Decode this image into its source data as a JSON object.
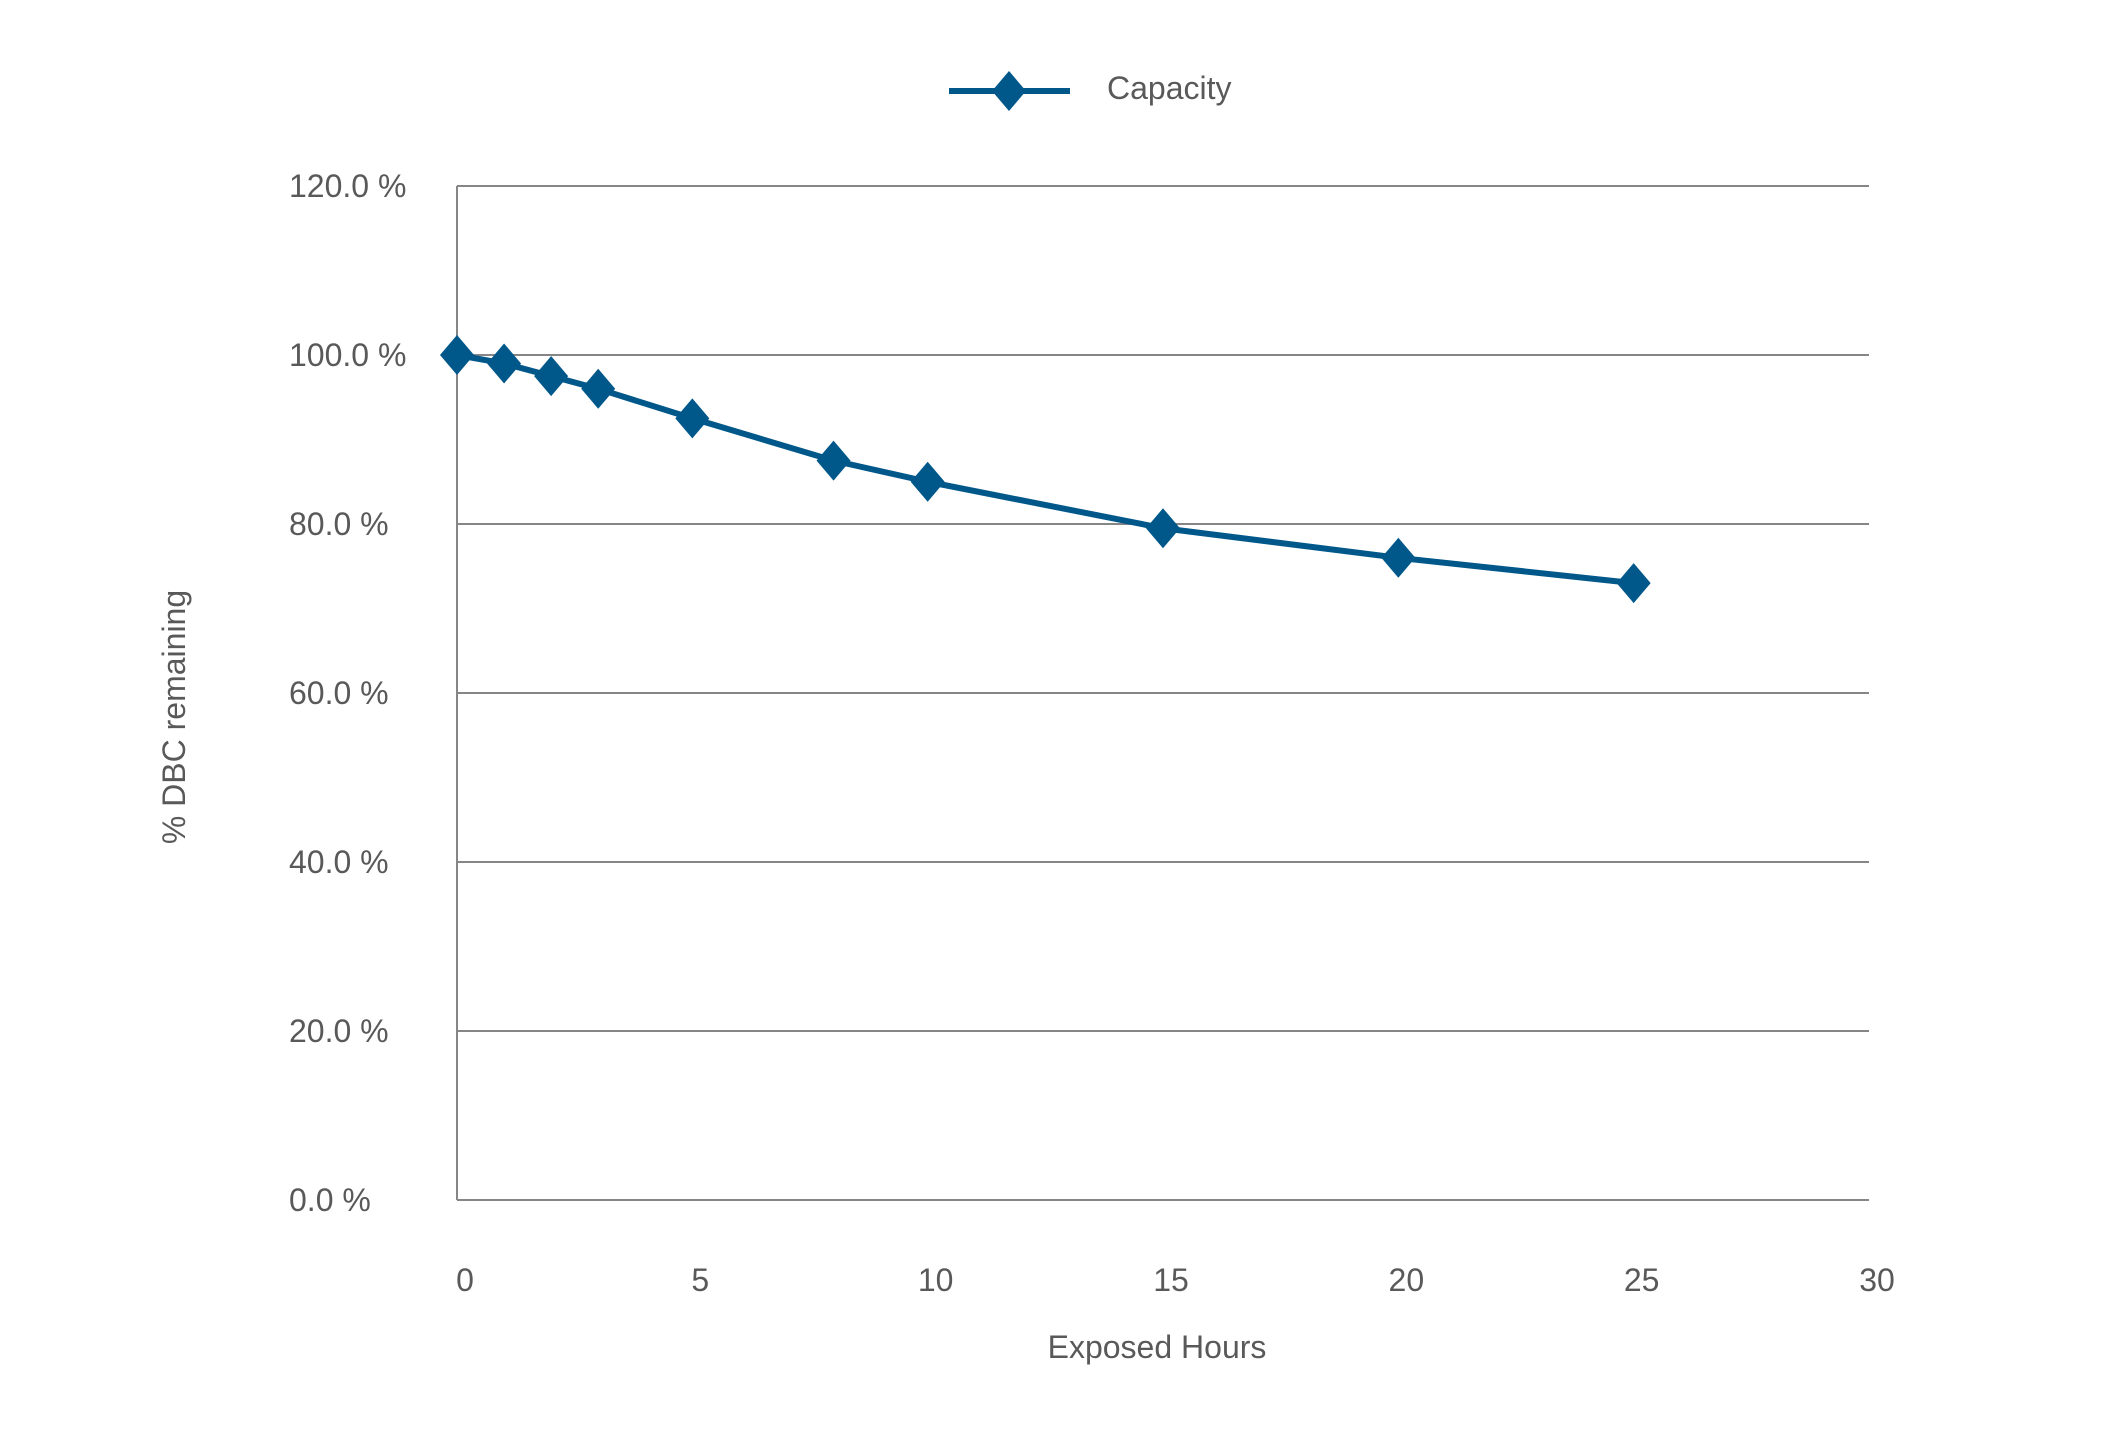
{
  "chart_data": {
    "type": "line",
    "title": "",
    "xlabel": "Exposed Hours",
    "ylabel": "% DBC remaining",
    "xlim": [
      0,
      30
    ],
    "ylim": [
      0,
      120
    ],
    "xticks": [
      0,
      5,
      10,
      15,
      20,
      25,
      30
    ],
    "yticks": [
      0,
      20,
      40,
      60,
      80,
      100,
      120
    ],
    "ytick_labels": [
      "0.0 %",
      "20.0 %",
      "40.0 %",
      "60.0 %",
      "80.0 %",
      "100.0 %",
      "120.0 %"
    ],
    "xtick_labels": [
      "0",
      "5",
      "10",
      "15",
      "20",
      "25",
      "30"
    ],
    "grid": "horizontal",
    "legend_position": "top-center",
    "series": [
      {
        "name": "Capacity",
        "color": "#00578A",
        "marker": "diamond",
        "x": [
          0,
          1,
          2,
          3,
          5,
          8,
          10,
          15,
          20,
          25
        ],
        "y": [
          100.0,
          99.0,
          97.5,
          96.0,
          92.5,
          87.5,
          85.0,
          79.5,
          76.0,
          73.0
        ]
      }
    ]
  }
}
